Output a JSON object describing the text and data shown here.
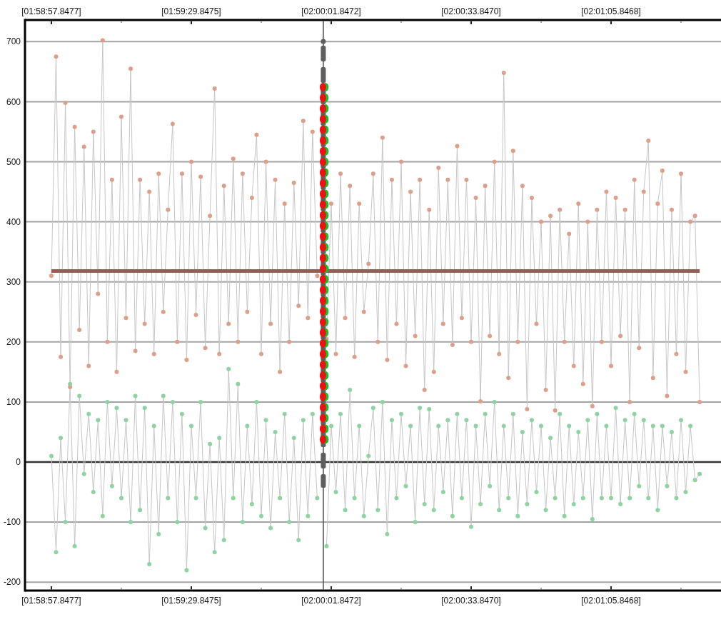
{
  "chart_data": {
    "type": "line",
    "categories": [
      "[01:58:57.8477]",
      null,
      null,
      null,
      null,
      null,
      null,
      null,
      null,
      null,
      null,
      null,
      null,
      null,
      null,
      null,
      null,
      null,
      null,
      null,
      null,
      null,
      null,
      null,
      null,
      null,
      null,
      null,
      null,
      null,
      "[01:59:29.8475]",
      null,
      null,
      null,
      null,
      null,
      null,
      null,
      null,
      null,
      null,
      null,
      null,
      null,
      null,
      null,
      null,
      null,
      null,
      null,
      null,
      null,
      null,
      null,
      null,
      null,
      null,
      null,
      null,
      null,
      "[02:00:01.8472]",
      null,
      null,
      null,
      null,
      null,
      null,
      null,
      null,
      null,
      null,
      null,
      null,
      null,
      null,
      null,
      null,
      null,
      null,
      null,
      null,
      null,
      null,
      null,
      null,
      null,
      null,
      null,
      null,
      null,
      "[02:00:33.8470]",
      null,
      null,
      null,
      null,
      null,
      null,
      null,
      null,
      null,
      null,
      null,
      null,
      null,
      null,
      null,
      null,
      null,
      null,
      null,
      null,
      null,
      null,
      null,
      null,
      null,
      null,
      null,
      null,
      null,
      "[02:01:05.8468]",
      null,
      null,
      null,
      null,
      null,
      null,
      null,
      null,
      null,
      null,
      null,
      null,
      null,
      null,
      null,
      null,
      null,
      null,
      null
    ],
    "ylim": [
      -214,
      736
    ],
    "yticks": [
      -200,
      -100,
      0,
      100,
      200,
      300,
      400,
      500,
      600,
      700
    ],
    "grid": "y",
    "ref_lines": [
      {
        "axis": "y",
        "value": 318,
        "color": "#9c5a55"
      }
    ],
    "series": [
      {
        "color": "#c6c6c6",
        "values": [
          310,
          675,
          175,
          598,
          125,
          558,
          220,
          525,
          160,
          550,
          280,
          702,
          200,
          470,
          150,
          575,
          240,
          655,
          185,
          470,
          230,
          450,
          180,
          480,
          250,
          420,
          563,
          200,
          480,
          170,
          500,
          245,
          475,
          190,
          410,
          622,
          180,
          460,
          230,
          505,
          200,
          480,
          250,
          440,
          545,
          180,
          500,
          230,
          470,
          150,
          430,
          200,
          465,
          260,
          568,
          240,
          550,
          310,
          null,
          205,
          430,
          180,
          480,
          240,
          460,
          175,
          430,
          250,
          330,
          480,
          200,
          540,
          170,
          470,
          230,
          500,
          160,
          450,
          210,
          470,
          120,
          420,
          150,
          490,
          230,
          470,
          195,
          526,
          240,
          470,
          200,
          440,
          101,
          460,
          210,
          500,
          180,
          648,
          140,
          518,
          200,
          460,
          88,
          440,
          230,
          400,
          120,
          410,
          86,
          420,
          200,
          380,
          160,
          430,
          130,
          400,
          93,
          420,
          200,
          450,
          160,
          440,
          210,
          420,
          100,
          470,
          190,
          450,
          535,
          140,
          430,
          485,
          110,
          420,
          180,
          480,
          150,
          400,
          410,
          100
        ]
      },
      {
        "color": "#c6c6c6",
        "values": [
          10,
          -150,
          40,
          -100,
          130,
          -140,
          110,
          -20,
          80,
          -50,
          70,
          -90,
          100,
          -40,
          90,
          -60,
          70,
          -100,
          110,
          -80,
          90,
          -170,
          60,
          -120,
          110,
          -60,
          100,
          -100,
          80,
          -180,
          60,
          -60,
          100,
          -110,
          30,
          -150,
          40,
          -130,
          155,
          -60,
          130,
          -100,
          60,
          -70,
          100,
          -90,
          70,
          -110,
          50,
          -60,
          80,
          -100,
          40,
          -130,
          70,
          -90,
          80,
          -60,
          null,
          -140,
          60,
          -50,
          80,
          -80,
          120,
          -60,
          60,
          -90,
          10,
          90,
          -80,
          100,
          -120,
          70,
          -60,
          80,
          -40,
          60,
          -100,
          90,
          -70,
          88,
          -80,
          60,
          -50,
          70,
          -90,
          80,
          -60,
          70,
          -108,
          60,
          -70,
          80,
          -40,
          100,
          -80,
          60,
          -60,
          80,
          -90,
          50,
          -70,
          70,
          -50,
          60,
          -80,
          40,
          -60,
          80,
          -90,
          60,
          -70,
          50,
          -60,
          70,
          -95,
          80,
          -60,
          60,
          -60,
          90,
          -70,
          70,
          -60,
          80,
          -40,
          70,
          -60,
          60,
          -80,
          60,
          -40,
          50,
          -60,
          70,
          -50,
          60,
          -30,
          -20
        ]
      },
      {
        "type": "scatter",
        "color": "#dca08a",
        "marker": "circle",
        "values": [
          310,
          675,
          175,
          598,
          125,
          558,
          220,
          525,
          160,
          550,
          280,
          702,
          200,
          470,
          150,
          575,
          240,
          655,
          185,
          470,
          230,
          450,
          180,
          480,
          250,
          420,
          563,
          200,
          480,
          170,
          500,
          245,
          475,
          190,
          410,
          622,
          180,
          460,
          230,
          505,
          200,
          480,
          250,
          440,
          545,
          180,
          500,
          230,
          470,
          150,
          430,
          200,
          465,
          260,
          568,
          240,
          550,
          310,
          null,
          205,
          430,
          180,
          480,
          240,
          460,
          175,
          430,
          250,
          330,
          480,
          200,
          540,
          170,
          470,
          230,
          500,
          160,
          450,
          210,
          470,
          120,
          420,
          150,
          490,
          230,
          470,
          195,
          526,
          240,
          470,
          200,
          440,
          101,
          460,
          210,
          500,
          180,
          648,
          140,
          518,
          200,
          460,
          88,
          440,
          230,
          400,
          120,
          410,
          86,
          420,
          200,
          380,
          160,
          430,
          130,
          400,
          93,
          420,
          200,
          450,
          160,
          440,
          210,
          420,
          100,
          470,
          190,
          450,
          535,
          140,
          430,
          485,
          110,
          420,
          180,
          480,
          150,
          400,
          410,
          100
        ]
      },
      {
        "type": "scatter",
        "color": "#8fd3a3",
        "marker": "circle",
        "values": [
          10,
          -150,
          40,
          -100,
          130,
          -140,
          110,
          -20,
          80,
          -50,
          70,
          -90,
          100,
          -40,
          90,
          -60,
          70,
          -100,
          110,
          -80,
          90,
          -170,
          60,
          -120,
          110,
          -60,
          100,
          -100,
          80,
          -180,
          60,
          -60,
          100,
          -110,
          30,
          -150,
          40,
          -130,
          155,
          -60,
          130,
          -100,
          60,
          -70,
          100,
          -90,
          70,
          -110,
          50,
          -60,
          80,
          -100,
          40,
          -130,
          70,
          -90,
          80,
          -60,
          null,
          -140,
          60,
          -50,
          80,
          -80,
          120,
          -60,
          60,
          -90,
          10,
          90,
          -80,
          100,
          -120,
          70,
          -60,
          80,
          -40,
          60,
          -100,
          90,
          -70,
          88,
          -80,
          60,
          -50,
          70,
          -90,
          80,
          -60,
          70,
          -108,
          60,
          -70,
          80,
          -40,
          100,
          -80,
          60,
          -60,
          80,
          -90,
          50,
          -70,
          70,
          -50,
          60,
          -80,
          40,
          -60,
          80,
          -90,
          60,
          -70,
          50,
          -60,
          70,
          -95,
          80,
          -60,
          60,
          -60,
          90,
          -70,
          70,
          -60,
          80,
          -40,
          70,
          -60,
          60,
          -80,
          60,
          -40,
          50,
          -60,
          70,
          -50,
          60,
          -30,
          -20
        ]
      }
    ]
  }
}
